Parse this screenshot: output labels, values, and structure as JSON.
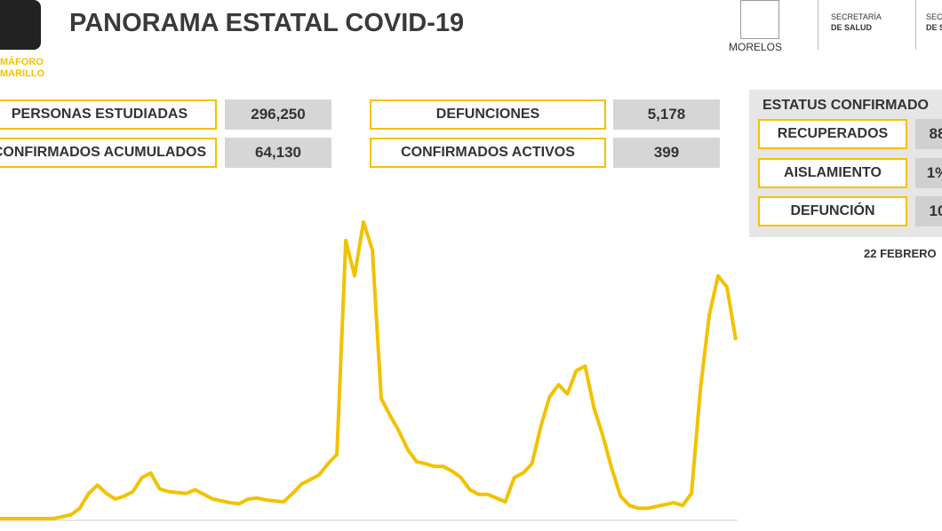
{
  "header": {
    "title": "PANORAMA ESTATAL COVID-19",
    "semaforo": [
      "MÁFORO",
      "MARILLO"
    ],
    "logos": [
      "MORELOS",
      "SECRETARÍA",
      "DE SALUD",
      "SECRE",
      "DE S"
    ]
  },
  "stats": [
    {
      "label": "PERSONAS ESTUDIADAS",
      "value": "296,250"
    },
    {
      "label": "CONFIRMADOS ACUMULADOS",
      "value": "64,130"
    },
    {
      "label": "DEFUNCIONES",
      "value": "5,178"
    },
    {
      "label": "CONFIRMADOS ACTIVOS",
      "value": "399"
    }
  ],
  "status": {
    "title": "ESTATUS CONFIRMADO",
    "rows": [
      {
        "label": "RECUPERADOS",
        "value": "88"
      },
      {
        "label": "AISLAMIENTO",
        "value": "1%"
      },
      {
        "label": "DEFUNCIÓN",
        "value": "10"
      }
    ],
    "date": "22 FEBRERO"
  },
  "chart_data": {
    "type": "line",
    "color": "#f2c200",
    "values": [
      1,
      1,
      1,
      1,
      1,
      1,
      1,
      3,
      5,
      12,
      28,
      37,
      28,
      22,
      25,
      30,
      45,
      50,
      33,
      30,
      29,
      28,
      32,
      27,
      22,
      20,
      18,
      17,
      22,
      23,
      21,
      20,
      19,
      28,
      38,
      43,
      48,
      60,
      70,
      300,
      262,
      320,
      290,
      130,
      112,
      95,
      75,
      62,
      60,
      57,
      57,
      52,
      45,
      32,
      27,
      27,
      23,
      19,
      45,
      50,
      60,
      100,
      132,
      145,
      135,
      160,
      165,
      120,
      90,
      55,
      25,
      15,
      12,
      12,
      14,
      16,
      18,
      15,
      28,
      140,
      220,
      262,
      250,
      193
    ]
  }
}
